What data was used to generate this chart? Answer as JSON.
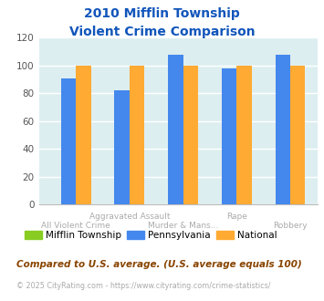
{
  "title_line1": "2010 Mifflin Township",
  "title_line2": "Violent Crime Comparison",
  "series": [
    "Mifflin Township",
    "Pennsylvania",
    "National"
  ],
  "pa_values": [
    91,
    82,
    108,
    98,
    108
  ],
  "nat_values": [
    100,
    100,
    100,
    100,
    100
  ],
  "mt_values": [
    0,
    0,
    0,
    0,
    0
  ],
  "categories_5": [
    "All Violent Crime",
    "Aggravated Assault",
    "Murder & Mans...",
    "Rape",
    "Robbery"
  ],
  "top_xlabels": [
    "",
    "Aggravated Assault",
    "",
    "Rape",
    ""
  ],
  "bot_xlabels": [
    "All Violent Crime",
    "",
    "Murder & Mans...",
    "",
    "Robbery"
  ],
  "colors": {
    "mifflin": "#88cc22",
    "pennsylvania": "#4488ee",
    "national": "#ffaa33"
  },
  "ylim": [
    0,
    120
  ],
  "yticks": [
    0,
    20,
    40,
    60,
    80,
    100,
    120
  ],
  "bg_color": "#ddeef0",
  "title_color": "#1155bb",
  "footnote1": "Compared to U.S. average. (U.S. average equals 100)",
  "footnote2": "© 2025 CityRating.com - https://www.cityrating.com/crime-statistics/",
  "footnote1_color": "#884400",
  "footnote2_color": "#aaaaaa",
  "xlabel_color": "#aaaaaa"
}
